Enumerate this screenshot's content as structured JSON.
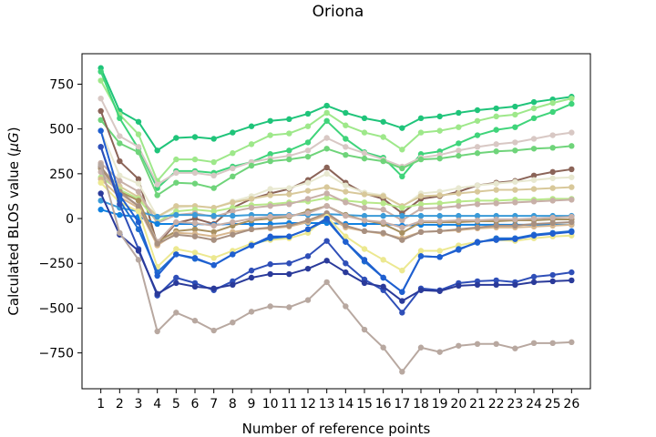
{
  "chart_data": {
    "type": "line",
    "title": "Oriona",
    "xlabel": "Number of reference points",
    "ylabel_main": "Calculated BLOS value (",
    "ylabel_unit": "μG",
    "ylabel_close": ")",
    "x": [
      1,
      2,
      3,
      4,
      5,
      6,
      7,
      8,
      9,
      10,
      11,
      12,
      13,
      14,
      15,
      16,
      17,
      18,
      19,
      20,
      21,
      22,
      23,
      24,
      25,
      26
    ],
    "xlim": [
      0,
      27
    ],
    "ylim": [
      -950,
      920
    ],
    "yticks": [
      -750,
      -500,
      -250,
      0,
      250,
      500,
      750
    ],
    "grid": false,
    "legend": "none",
    "series": [
      {
        "color": "#1fc47a",
        "values": [
          840,
          600,
          540,
          380,
          450,
          455,
          445,
          480,
          515,
          545,
          555,
          585,
          630,
          590,
          560,
          540,
          505,
          560,
          570,
          590,
          605,
          615,
          625,
          650,
          665,
          680
        ]
      },
      {
        "color": "#9ee88a",
        "values": [
          770,
          580,
          470,
          210,
          330,
          330,
          315,
          365,
          415,
          465,
          475,
          515,
          590,
          520,
          480,
          455,
          385,
          480,
          490,
          510,
          545,
          570,
          580,
          615,
          645,
          670
        ]
      },
      {
        "color": "#3fd47a",
        "values": [
          820,
          560,
          390,
          170,
          265,
          265,
          255,
          290,
          315,
          360,
          380,
          425,
          545,
          445,
          370,
          340,
          235,
          360,
          375,
          420,
          465,
          495,
          510,
          560,
          595,
          640
        ]
      },
      {
        "color": "#d8c8c4",
        "values": [
          670,
          460,
          400,
          190,
          255,
          255,
          240,
          280,
          315,
          335,
          350,
          380,
          450,
          400,
          365,
          330,
          290,
          340,
          355,
          380,
          400,
          415,
          425,
          445,
          465,
          480
        ]
      },
      {
        "color": "#6fd47a",
        "values": [
          550,
          420,
          370,
          130,
          200,
          195,
          170,
          235,
          295,
          320,
          330,
          345,
          390,
          355,
          335,
          320,
          280,
          330,
          335,
          350,
          365,
          375,
          380,
          390,
          395,
          405
        ]
      },
      {
        "color": "#8b6458",
        "values": [
          600,
          320,
          220,
          -145,
          -25,
          0,
          -30,
          60,
          110,
          140,
          165,
          215,
          285,
          200,
          140,
          110,
          30,
          110,
          125,
          150,
          185,
          200,
          210,
          240,
          260,
          275
        ]
      },
      {
        "color": "#e8e8d0",
        "values": [
          490,
          240,
          195,
          10,
          60,
          70,
          60,
          95,
          125,
          165,
          170,
          200,
          250,
          185,
          145,
          130,
          65,
          140,
          150,
          170,
          185,
          195,
          205,
          215,
          225,
          230
        ]
      },
      {
        "color": "#d8c89a",
        "values": [
          280,
          180,
          120,
          10,
          70,
          70,
          60,
          90,
          110,
          130,
          135,
          155,
          175,
          150,
          135,
          125,
          70,
          125,
          130,
          140,
          150,
          160,
          160,
          165,
          170,
          175
        ]
      },
      {
        "color": "#b8e88a",
        "values": [
          230,
          160,
          110,
          -20,
          40,
          50,
          40,
          60,
          75,
          80,
          90,
          95,
          115,
          100,
          90,
          85,
          60,
          80,
          85,
          95,
          100,
          100,
          105,
          105,
          110,
          110
        ]
      },
      {
        "color": "#c8b0a8",
        "values": [
          310,
          210,
          150,
          -25,
          20,
          30,
          10,
          40,
          60,
          70,
          80,
          110,
          140,
          90,
          60,
          50,
          -10,
          55,
          60,
          70,
          80,
          85,
          90,
          95,
          100,
          105
        ]
      },
      {
        "color": "#3a9ad8",
        "values": [
          100,
          60,
          40,
          10,
          20,
          20,
          15,
          15,
          20,
          20,
          20,
          20,
          25,
          20,
          15,
          15,
          15,
          15,
          15,
          15,
          15,
          15,
          15,
          15,
          15,
          15
        ]
      },
      {
        "color": "#1080e0",
        "values": [
          50,
          20,
          10,
          -30,
          -30,
          -30,
          -35,
          -30,
          -30,
          -30,
          -25,
          -25,
          -25,
          -30,
          -30,
          -30,
          -40,
          -35,
          -35,
          -35,
          -35,
          -35,
          -35,
          -35,
          -35,
          -35
        ]
      },
      {
        "color": "#a89060",
        "values": [
          280,
          150,
          100,
          -130,
          -70,
          -60,
          -75,
          -40,
          -10,
          0,
          10,
          40,
          70,
          20,
          -10,
          -30,
          -80,
          -20,
          -20,
          -20,
          -15,
          -15,
          -10,
          -10,
          -5,
          -5
        ]
      },
      {
        "color": "#c8b0a8",
        "values": [
          260,
          140,
          70,
          -130,
          -20,
          -25,
          -40,
          -20,
          0,
          10,
          15,
          30,
          70,
          15,
          -10,
          -20,
          -50,
          -15,
          -15,
          -10,
          -10,
          -5,
          -5,
          0,
          5,
          10
        ]
      },
      {
        "color": "#d8b890",
        "values": [
          220,
          120,
          60,
          -150,
          -80,
          -85,
          -100,
          -75,
          -60,
          -55,
          -45,
          -20,
          20,
          -50,
          -70,
          -85,
          -110,
          -75,
          -70,
          -65,
          -55,
          -50,
          -50,
          -45,
          -40,
          -35
        ]
      },
      {
        "color": "#a89080",
        "values": [
          290,
          150,
          70,
          -140,
          -90,
          -100,
          -120,
          -90,
          -60,
          -50,
          -40,
          -10,
          30,
          -40,
          -70,
          -80,
          -120,
          -75,
          -70,
          -60,
          -50,
          -40,
          -40,
          -30,
          -25,
          -20
        ]
      },
      {
        "color": "#ece890",
        "values": [
          200,
          90,
          40,
          -270,
          -170,
          -190,
          -220,
          -180,
          -140,
          -120,
          -110,
          -80,
          10,
          -100,
          -170,
          -230,
          -290,
          -180,
          -180,
          -150,
          -130,
          -120,
          -125,
          -110,
          -100,
          -95
        ]
      },
      {
        "color": "#1f6fd0",
        "values": [
          400,
          100,
          -60,
          -300,
          -200,
          -225,
          -260,
          -200,
          -150,
          -110,
          -100,
          -60,
          -10,
          -130,
          -240,
          -330,
          -410,
          -210,
          -215,
          -170,
          -135,
          -110,
          -110,
          -90,
          -80,
          -70
        ]
      },
      {
        "color": "#1f5fd0",
        "values": [
          490,
          130,
          -20,
          -320,
          -200,
          -220,
          -260,
          -200,
          -150,
          -100,
          -100,
          -60,
          0,
          -130,
          -230,
          -330,
          -410,
          -210,
          -215,
          -175,
          -130,
          -120,
          -115,
          -95,
          -85,
          -75
        ]
      },
      {
        "color": "#2f4fb8",
        "values": [
          400,
          80,
          -170,
          -430,
          -330,
          -360,
          -400,
          -350,
          -290,
          -255,
          -250,
          -210,
          -125,
          -250,
          -340,
          -400,
          -525,
          -390,
          -400,
          -360,
          -350,
          -345,
          -355,
          -325,
          -315,
          -300
        ]
      },
      {
        "color": "#2a3a9a",
        "values": [
          140,
          -90,
          -180,
          -420,
          -360,
          -380,
          -390,
          -370,
          -330,
          -310,
          -310,
          -280,
          -235,
          -300,
          -360,
          -380,
          -460,
          -400,
          -405,
          -375,
          -370,
          -370,
          -370,
          -355,
          -350,
          -345
        ]
      },
      {
        "color": "#b8a8a0",
        "values": [
          300,
          -80,
          -230,
          -630,
          -525,
          -570,
          -625,
          -580,
          -520,
          -490,
          -495,
          -455,
          -355,
          -490,
          -620,
          -720,
          -855,
          -720,
          -745,
          -710,
          -700,
          -700,
          -725,
          -695,
          -695,
          -690
        ]
      }
    ]
  }
}
